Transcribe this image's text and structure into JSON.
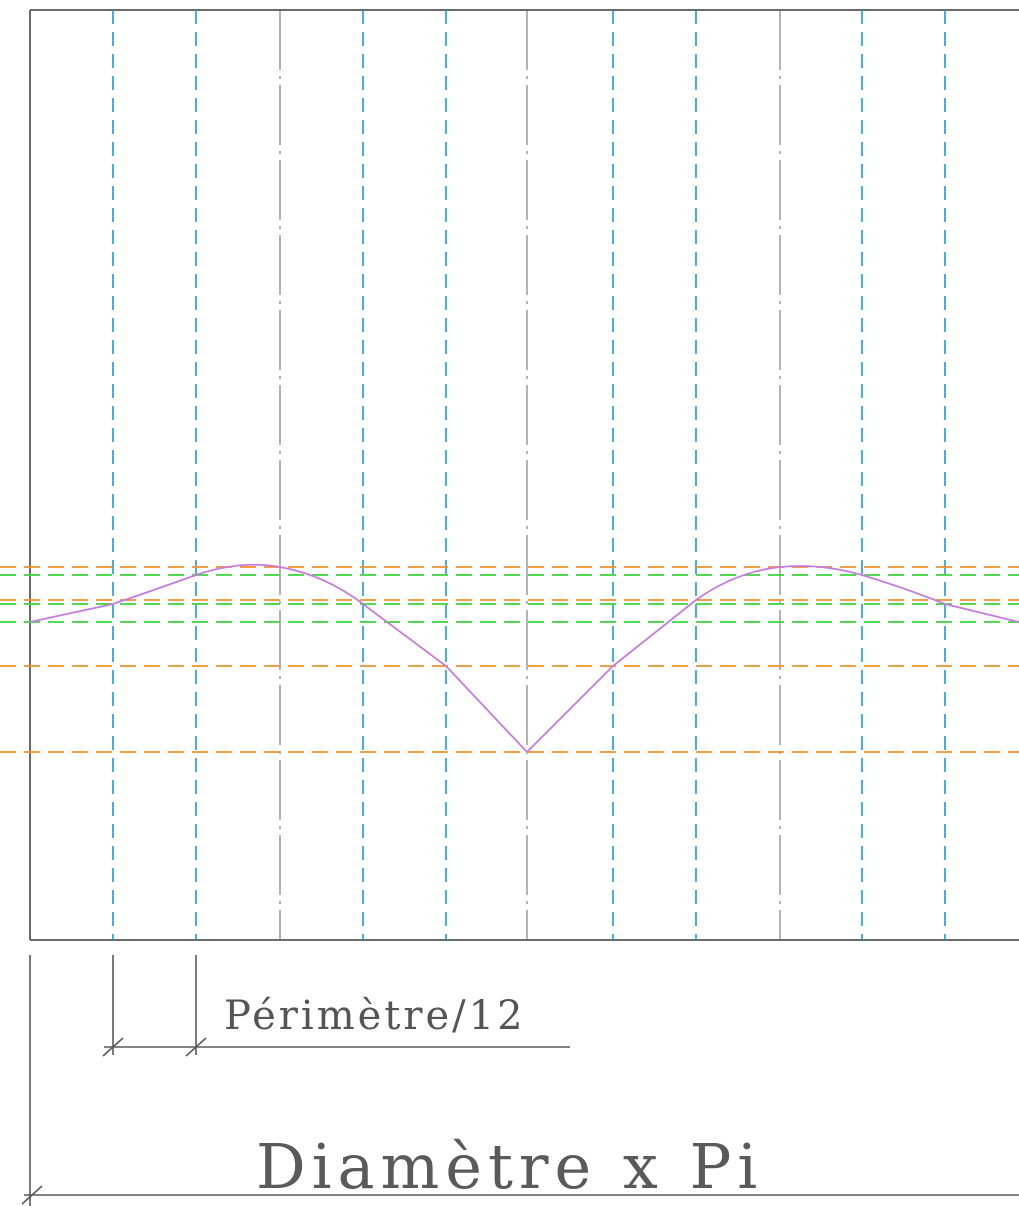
{
  "labels": {
    "division": "Périmètre/12",
    "total": "Diamètre x Pi"
  },
  "colors": {
    "frame": "#6b6b6b",
    "division_lines": "#1a9bd7",
    "construction_orange": "#f0902a",
    "construction_green": "#3ad63a",
    "development_curve": "#c77be0"
  },
  "divisions": 12
}
